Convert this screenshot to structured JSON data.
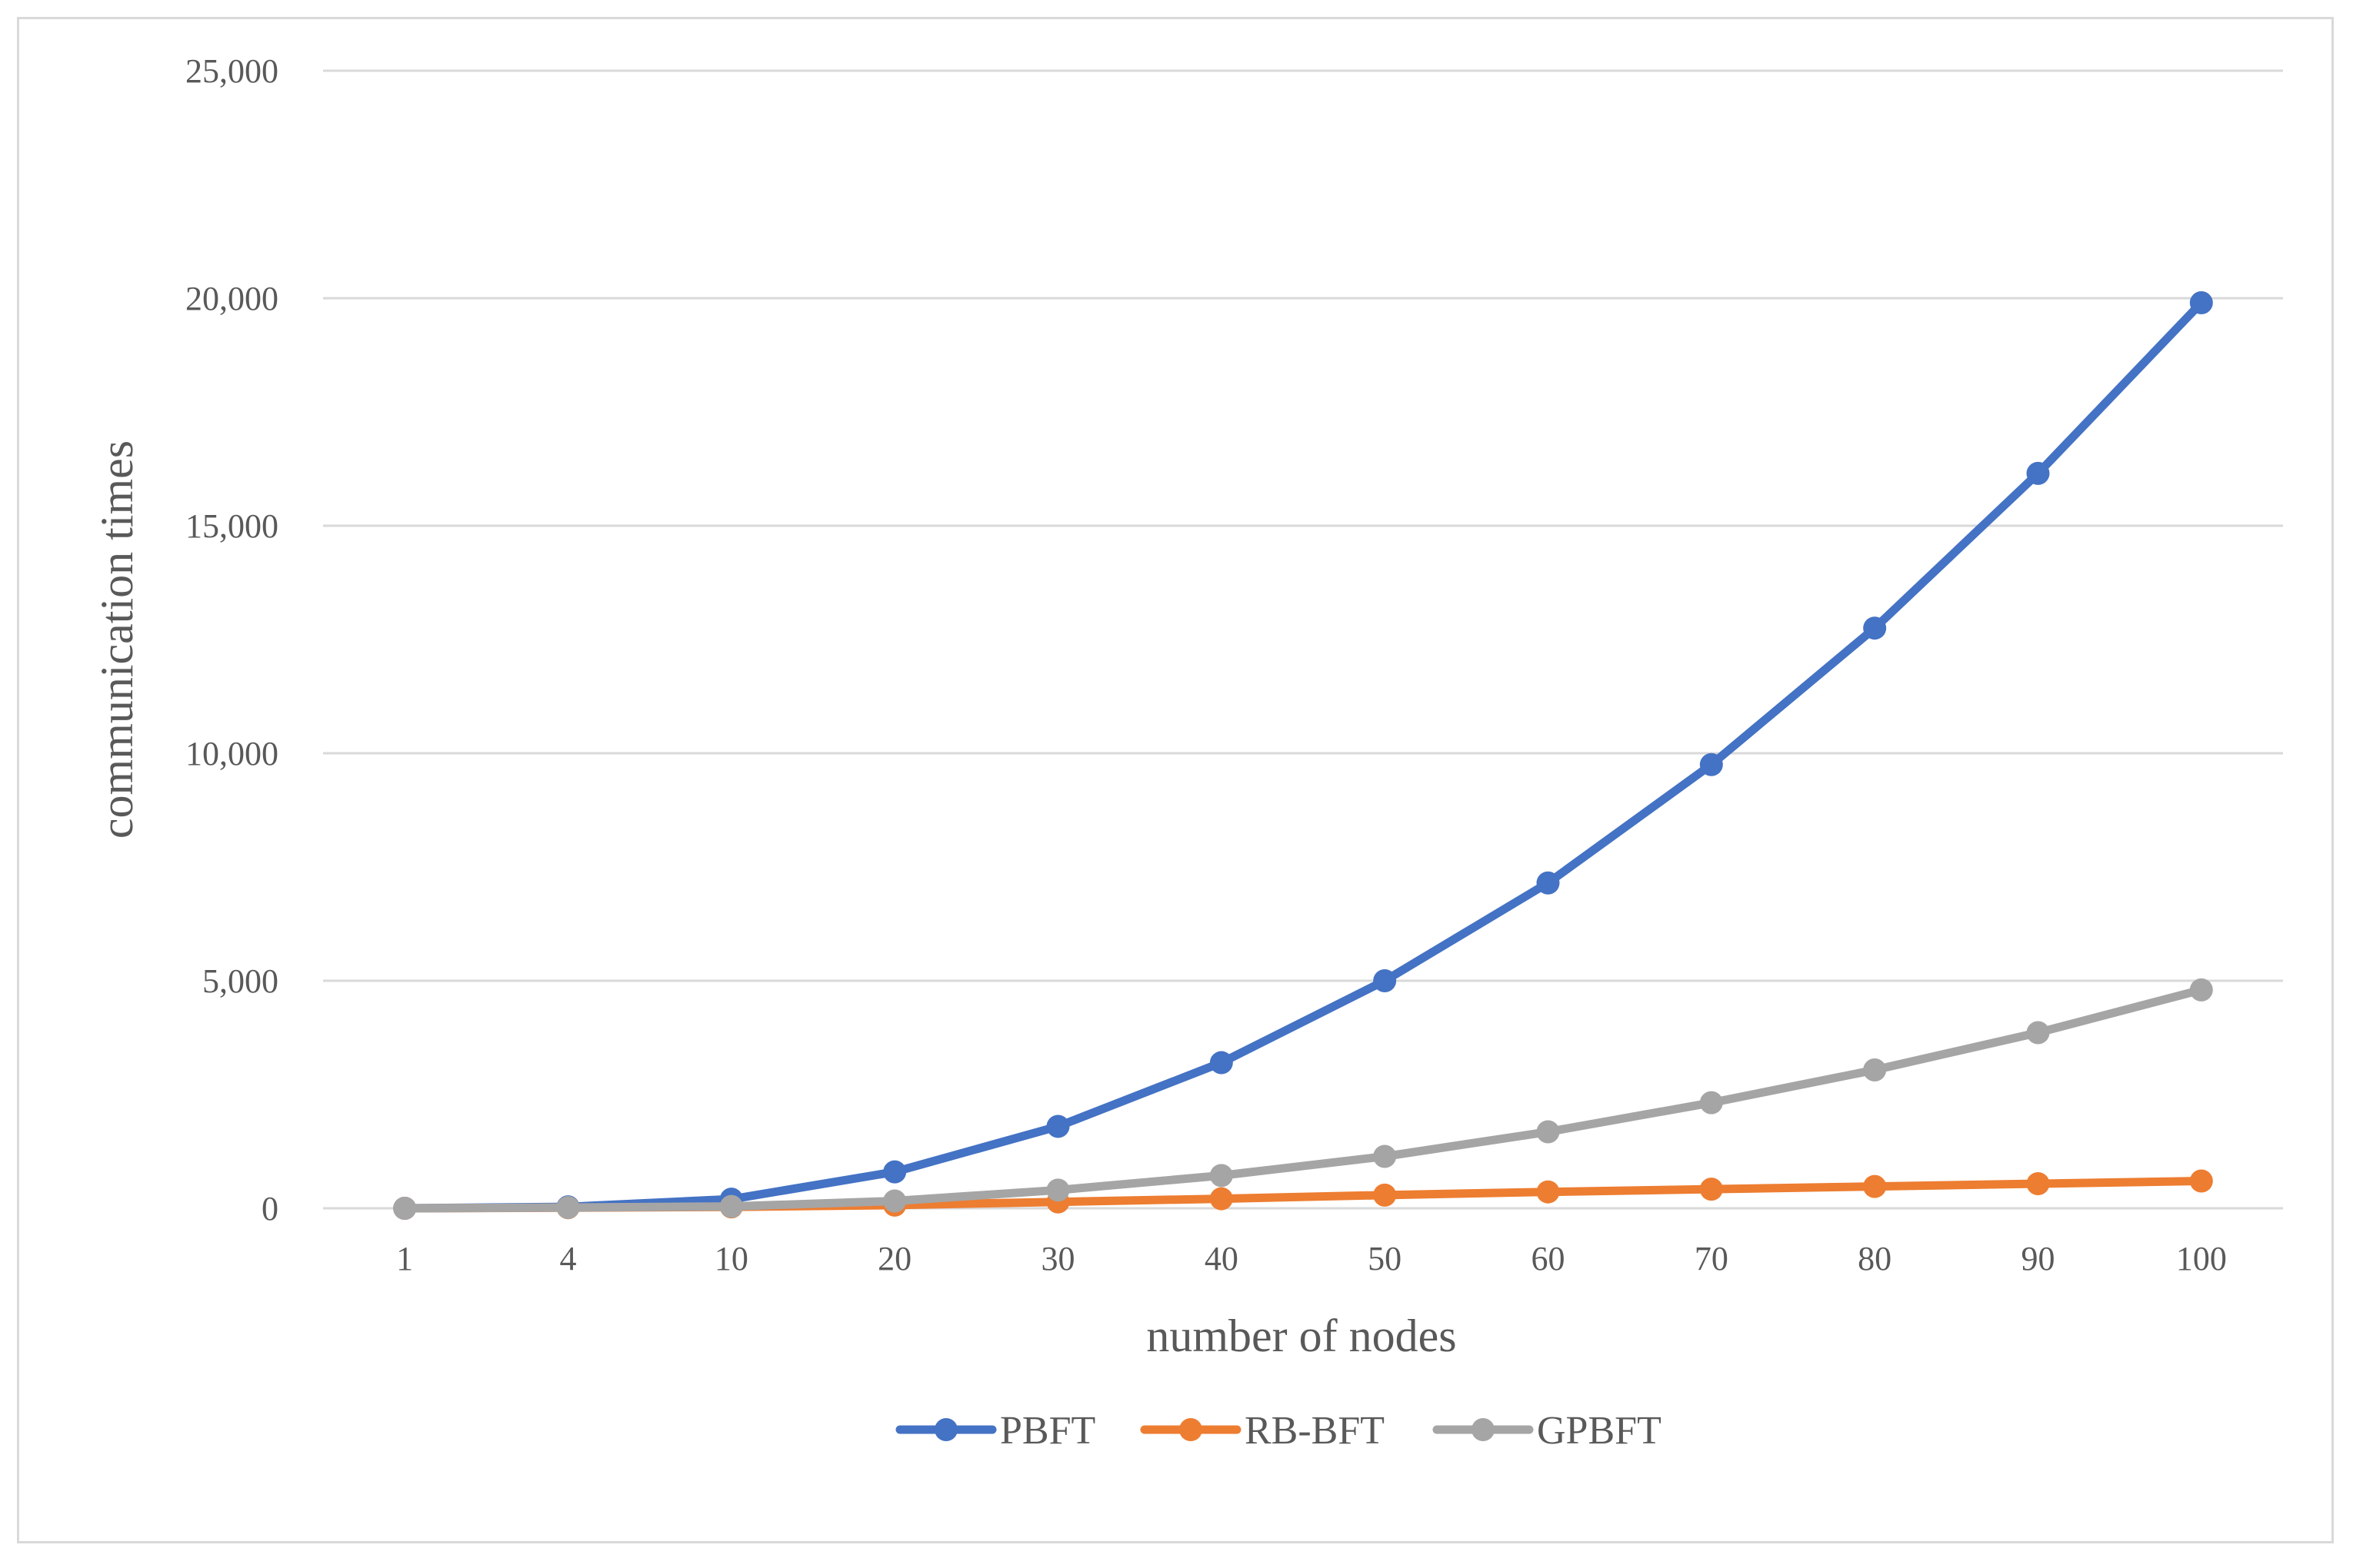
{
  "chart_data": {
    "type": "line",
    "title": "",
    "xlabel": "number of nodes",
    "ylabel": "communication times",
    "categories": [
      "1",
      "4",
      "10",
      "20",
      "30",
      "40",
      "50",
      "60",
      "70",
      "80",
      "90",
      "100"
    ],
    "ylim": [
      0,
      25000
    ],
    "yticks": [
      "0",
      "5,000",
      "10,000",
      "15,000",
      "20,000",
      "25,000"
    ],
    "ytick_values": [
      0,
      5000,
      10000,
      15000,
      20000,
      25000
    ],
    "grid": true,
    "legend_position": "bottom",
    "series": [
      {
        "name": "PBFT",
        "color": "#4472c4",
        "values": [
          0,
          32,
          200,
          800,
          1800,
          3200,
          5000,
          7150,
          9750,
          12750,
          16150,
          19900
        ]
      },
      {
        "name": "RB-BFT",
        "color": "#ed7d31",
        "values": [
          0,
          12,
          30,
          70,
          140,
          210,
          290,
          360,
          420,
          480,
          540,
          600
        ]
      },
      {
        "name": "GPBFT",
        "color": "#a5a5a5",
        "values": [
          0,
          16,
          40,
          160,
          400,
          720,
          1140,
          1680,
          2320,
          3040,
          3860,
          4800
        ]
      }
    ]
  }
}
